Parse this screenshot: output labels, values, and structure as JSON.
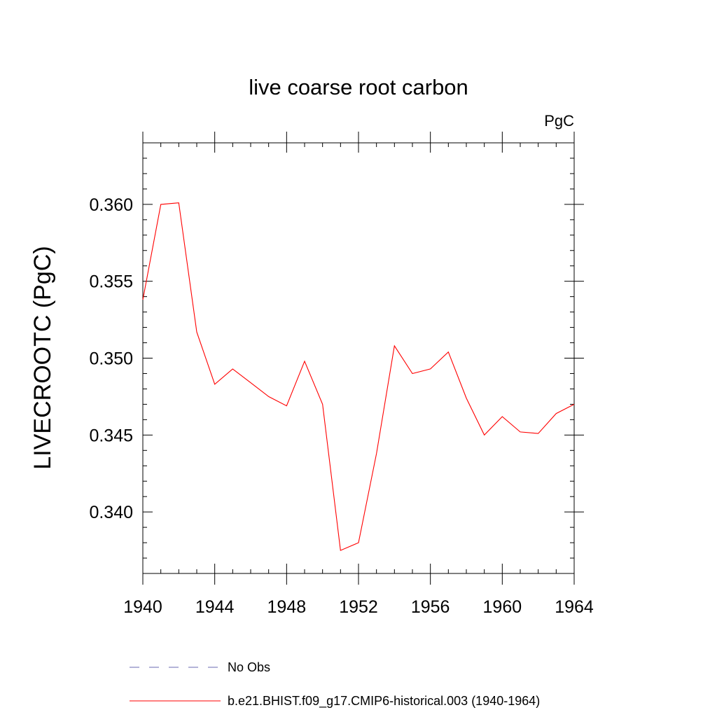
{
  "chart_data": {
    "type": "line",
    "title": "live coarse root carbon",
    "units": "PgC",
    "ylabel": "LIVECROOTC  (PgC)",
    "xlabel": "",
    "xlim": [
      1940,
      1964
    ],
    "ylim": [
      0.336,
      0.364
    ],
    "x_ticks": [
      1940,
      1944,
      1948,
      1952,
      1956,
      1960,
      1964
    ],
    "x_tick_labels": [
      "1940",
      "1944",
      "1948",
      "1952",
      "1956",
      "1960",
      "1964"
    ],
    "y_ticks": [
      0.34,
      0.345,
      0.35,
      0.355,
      0.36
    ],
    "y_tick_labels": [
      "0.340",
      "0.345",
      "0.350",
      "0.355",
      "0.360"
    ],
    "x_minor_step": 1,
    "y_minor_step": 0.001,
    "grid": false,
    "legend_position": "bottom",
    "series": [
      {
        "name": "No Obs",
        "color": "#6a6ab0",
        "dash": "dashed",
        "x": [],
        "y": []
      },
      {
        "name": "b.e21.BHIST.f09_g17.CMIP6-historical.003 (1940-1964)",
        "color": "#ff0000",
        "dash": "solid",
        "x": [
          1940,
          1941,
          1942,
          1943,
          1944,
          1945,
          1946,
          1947,
          1948,
          1949,
          1950,
          1951,
          1952,
          1953,
          1954,
          1955,
          1956,
          1957,
          1958,
          1959,
          1960,
          1961,
          1962,
          1963,
          1964
        ],
        "y": [
          0.3538,
          0.36,
          0.3601,
          0.3517,
          0.3483,
          0.3493,
          0.3484,
          0.3475,
          0.3469,
          0.3498,
          0.347,
          0.3375,
          0.338,
          0.3438,
          0.3508,
          0.349,
          0.3493,
          0.3504,
          0.3474,
          0.345,
          0.3462,
          0.3452,
          0.3451,
          0.3464,
          0.347
        ]
      }
    ]
  }
}
